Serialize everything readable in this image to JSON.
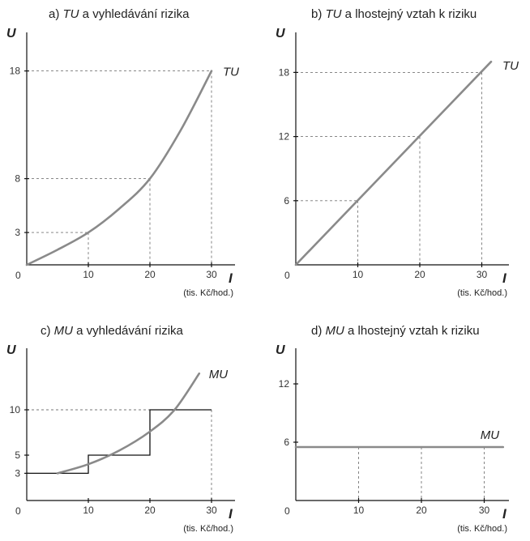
{
  "chart_data": [
    {
      "type": "line",
      "title_prefix": "a) ",
      "title_em": "TU",
      "title_rest": " a vyhledávání rizika",
      "ylabel": "U",
      "xlabel": "I",
      "xunit": "(tis. Kč/hod.)",
      "origin_label": "0",
      "xlim": [
        0,
        32
      ],
      "ylim": [
        0,
        20
      ],
      "x_ticks": [
        10,
        20,
        30
      ],
      "y_ticks": [
        3,
        8,
        18
      ],
      "curve_label": "TU",
      "guides": [
        [
          10,
          3
        ],
        [
          20,
          8
        ],
        [
          30,
          18
        ]
      ],
      "series": [
        {
          "name": "TU",
          "x": [
            0,
            5,
            10,
            15,
            20,
            25,
            30
          ],
          "y": [
            0,
            1.4,
            3,
            5.2,
            8,
            12.5,
            18
          ]
        }
      ]
    },
    {
      "type": "line",
      "title_prefix": "b) ",
      "title_em": "TU",
      "title_rest": " a lhostejný vztah k riziku",
      "ylabel": "U",
      "xlabel": "I",
      "xunit": "(tis. Kč/hod.)",
      "origin_label": "0",
      "xlim": [
        0,
        35
      ],
      "ylim": [
        0,
        20
      ],
      "x_ticks": [
        10,
        20,
        30
      ],
      "y_ticks": [
        6,
        12,
        18
      ],
      "curve_label": "TU",
      "guides": [
        [
          10,
          6
        ],
        [
          20,
          12
        ],
        [
          30,
          18
        ]
      ],
      "series": [
        {
          "name": "TU",
          "x": [
            0,
            31.5
          ],
          "y": [
            0,
            19
          ]
        }
      ]
    },
    {
      "type": "line",
      "title_prefix": "c) ",
      "title_em": "MU",
      "title_rest": " a vyhledávání rizika",
      "ylabel": "U",
      "xlabel": "I",
      "xunit": "(tis. Kč/hod.)",
      "origin_label": "0",
      "xlim": [
        0,
        32
      ],
      "ylim": [
        0,
        15
      ],
      "x_ticks": [
        10,
        20,
        30
      ],
      "y_ticks": [
        3,
        5,
        10
      ],
      "curve_label": "MU",
      "guides": [
        [
          30,
          10
        ]
      ],
      "steps": [
        [
          0,
          3
        ],
        [
          10,
          3
        ],
        [
          10,
          5
        ],
        [
          20,
          5
        ],
        [
          20,
          10
        ],
        [
          30,
          10
        ]
      ],
      "series": [
        {
          "name": "MU",
          "x": [
            5,
            10,
            15,
            20,
            24,
            28
          ],
          "y": [
            3,
            4,
            5.5,
            7.6,
            10,
            14
          ]
        }
      ]
    },
    {
      "type": "line",
      "title_prefix": "d) ",
      "title_em": "MU",
      "title_rest": " a lhostejný vztah k riziku",
      "ylabel": "U",
      "xlabel": "I",
      "xunit": "(tis. Kč/hod.)",
      "origin_label": "0",
      "xlim": [
        0,
        34
      ],
      "ylim": [
        0,
        14
      ],
      "x_ticks": [
        10,
        20,
        30
      ],
      "y_ticks": [
        6,
        12
      ],
      "curve_label": "MU",
      "guides": [
        [
          10,
          5.5
        ],
        [
          20,
          5.5
        ],
        [
          30,
          5.5
        ]
      ],
      "series": [
        {
          "name": "MU",
          "x": [
            0,
            33
          ],
          "y": [
            5.5,
            5.5
          ]
        }
      ]
    }
  ]
}
